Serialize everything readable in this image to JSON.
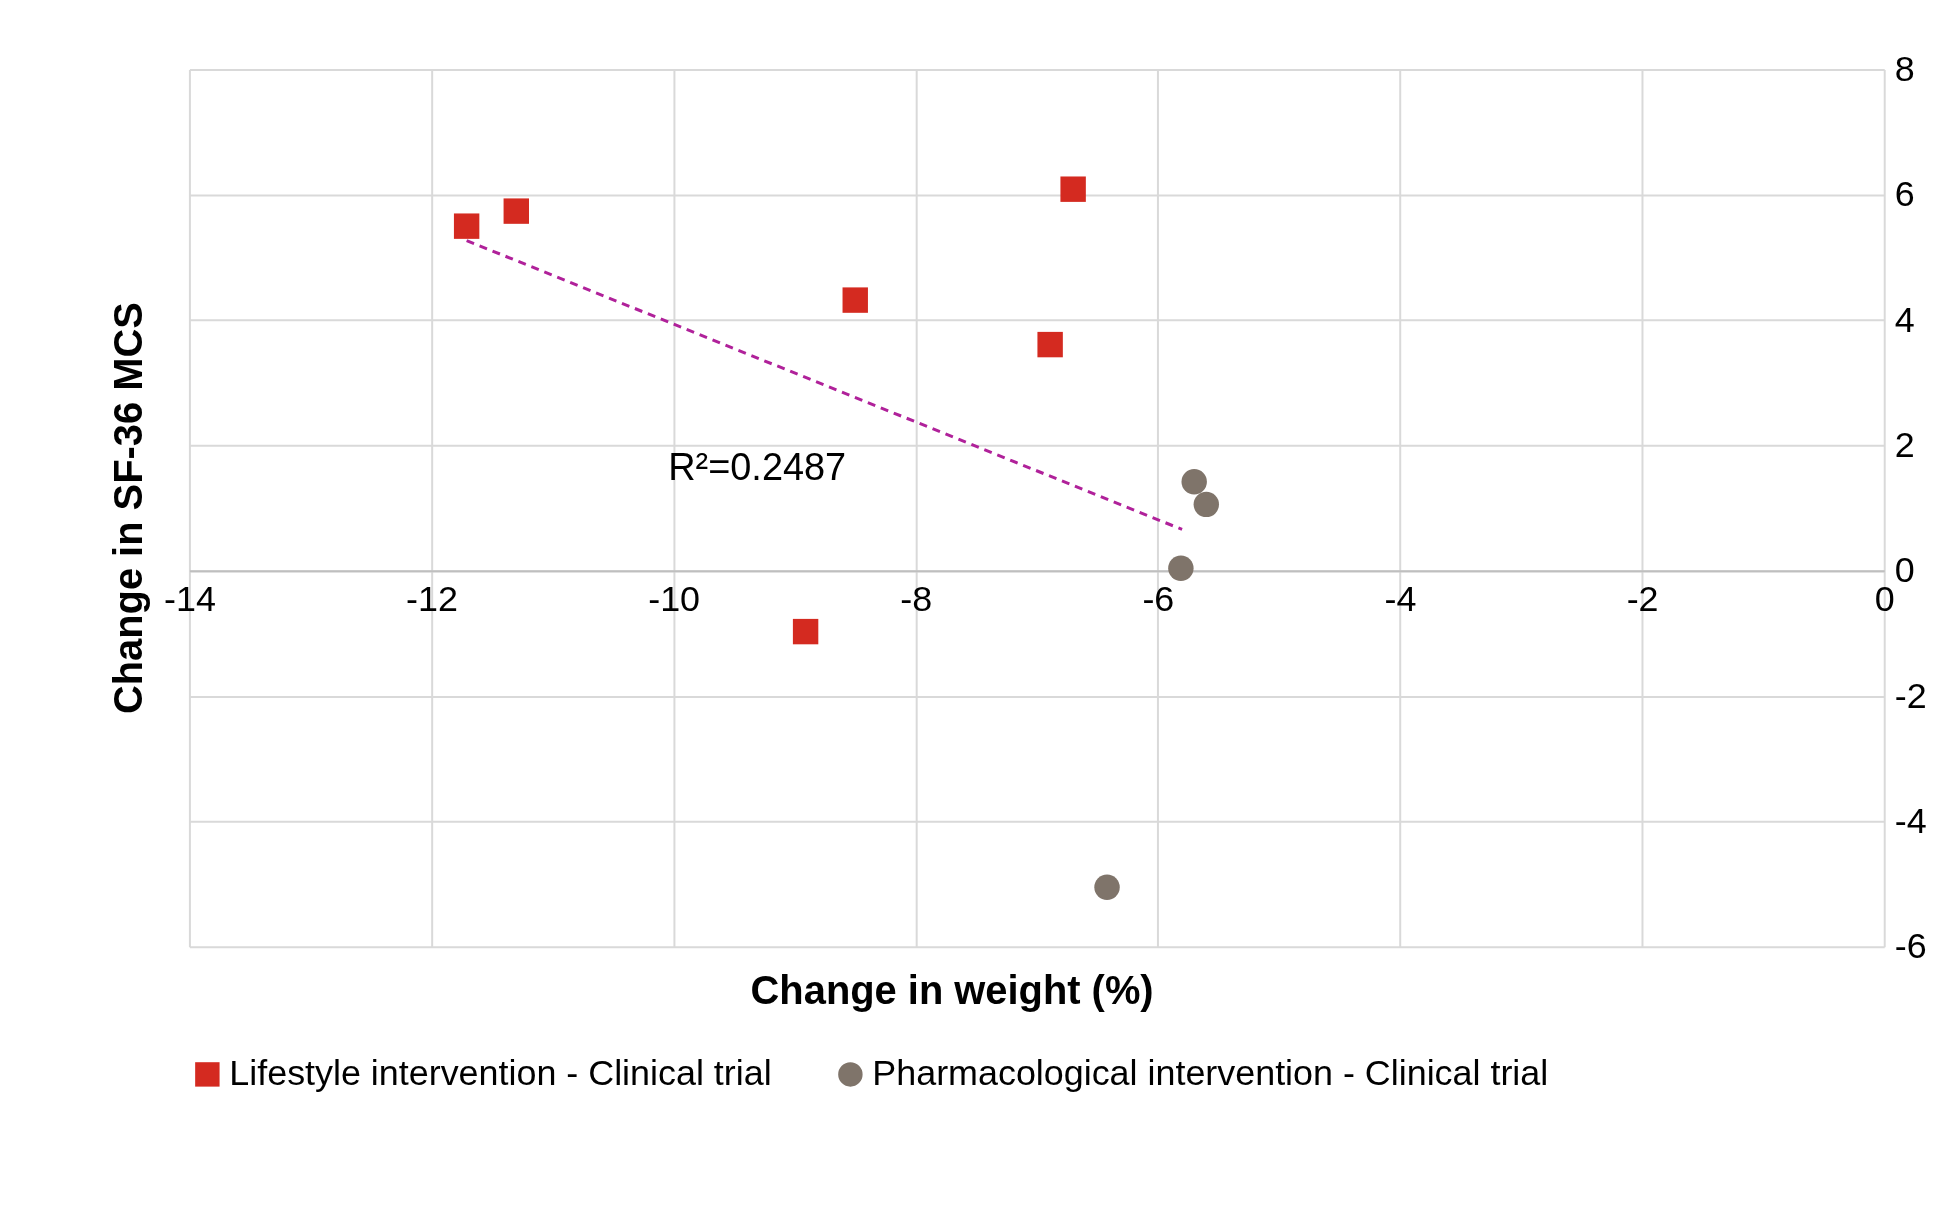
{
  "chart_data": {
    "type": "scatter",
    "xlabel": "Change in weight (%)",
    "xlim": [
      -14,
      0
    ],
    "ylim": [
      -6,
      8
    ],
    "xticks": [
      -14,
      -12,
      -10,
      -8,
      -6,
      -4,
      -2,
      0
    ],
    "yticks": [
      -6,
      -4,
      -2,
      0,
      2,
      4,
      6,
      8
    ],
    "grid": true,
    "legend": "bottom",
    "series": [
      {
        "name": "Lifestyle intervention - Clinical trial",
        "color": "#d42a20",
        "marker": "square",
        "x": [
          -11.71,
          -11.3,
          -6.7,
          -8.5,
          -6.89,
          -8.91
        ],
        "values": [
          5.5,
          5.74,
          6.09,
          4.32,
          3.61,
          -0.97
        ]
      },
      {
        "name": "Pharmacological intervention - Clinical trial",
        "color": "#7f746a",
        "marker": "circle",
        "x": [
          -5.7,
          -5.6,
          -5.81,
          -6.42
        ],
        "values": [
          1.42,
          1.06,
          0.04,
          -5.05
        ]
      },
      {
        "type": "line",
        "color": "#b0219a",
        "line_style": "dashed",
        "marker": "none",
        "x": [
          -11.71,
          -5.8
        ],
        "values": [
          5.27,
          0.66
        ]
      }
    ],
    "annotations": [
      "R²=0.2487",
      "Change in SF-36 MCS"
    ]
  }
}
